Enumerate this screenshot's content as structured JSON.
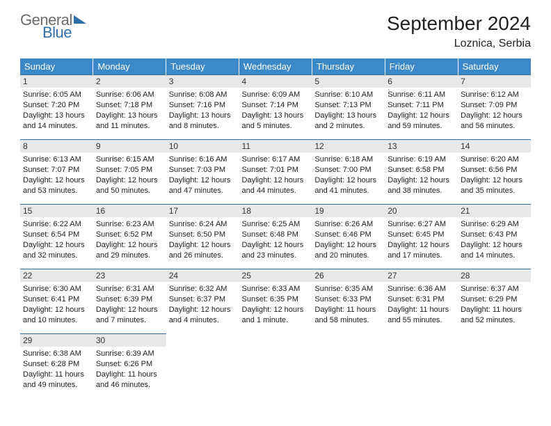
{
  "logo": {
    "word1": "General",
    "word2": "Blue"
  },
  "title": "September 2024",
  "location": "Loznica, Serbia",
  "weekdays": [
    "Sunday",
    "Monday",
    "Tuesday",
    "Wednesday",
    "Thursday",
    "Friday",
    "Saturday"
  ],
  "colors": {
    "header_bg": "#3b89c9",
    "header_text": "#ffffff",
    "daynum_bg": "#e8e8e8",
    "row_border": "#3b6a90",
    "logo_gray": "#6b6b6b",
    "logo_blue": "#2f6fa8"
  },
  "weeks": [
    [
      {
        "n": "1",
        "sr": "Sunrise: 6:05 AM",
        "ss": "Sunset: 7:20 PM",
        "d1": "Daylight: 13 hours",
        "d2": "and 14 minutes."
      },
      {
        "n": "2",
        "sr": "Sunrise: 6:06 AM",
        "ss": "Sunset: 7:18 PM",
        "d1": "Daylight: 13 hours",
        "d2": "and 11 minutes."
      },
      {
        "n": "3",
        "sr": "Sunrise: 6:08 AM",
        "ss": "Sunset: 7:16 PM",
        "d1": "Daylight: 13 hours",
        "d2": "and 8 minutes."
      },
      {
        "n": "4",
        "sr": "Sunrise: 6:09 AM",
        "ss": "Sunset: 7:14 PM",
        "d1": "Daylight: 13 hours",
        "d2": "and 5 minutes."
      },
      {
        "n": "5",
        "sr": "Sunrise: 6:10 AM",
        "ss": "Sunset: 7:13 PM",
        "d1": "Daylight: 13 hours",
        "d2": "and 2 minutes."
      },
      {
        "n": "6",
        "sr": "Sunrise: 6:11 AM",
        "ss": "Sunset: 7:11 PM",
        "d1": "Daylight: 12 hours",
        "d2": "and 59 minutes."
      },
      {
        "n": "7",
        "sr": "Sunrise: 6:12 AM",
        "ss": "Sunset: 7:09 PM",
        "d1": "Daylight: 12 hours",
        "d2": "and 56 minutes."
      }
    ],
    [
      {
        "n": "8",
        "sr": "Sunrise: 6:13 AM",
        "ss": "Sunset: 7:07 PM",
        "d1": "Daylight: 12 hours",
        "d2": "and 53 minutes."
      },
      {
        "n": "9",
        "sr": "Sunrise: 6:15 AM",
        "ss": "Sunset: 7:05 PM",
        "d1": "Daylight: 12 hours",
        "d2": "and 50 minutes."
      },
      {
        "n": "10",
        "sr": "Sunrise: 6:16 AM",
        "ss": "Sunset: 7:03 PM",
        "d1": "Daylight: 12 hours",
        "d2": "and 47 minutes."
      },
      {
        "n": "11",
        "sr": "Sunrise: 6:17 AM",
        "ss": "Sunset: 7:01 PM",
        "d1": "Daylight: 12 hours",
        "d2": "and 44 minutes."
      },
      {
        "n": "12",
        "sr": "Sunrise: 6:18 AM",
        "ss": "Sunset: 7:00 PM",
        "d1": "Daylight: 12 hours",
        "d2": "and 41 minutes."
      },
      {
        "n": "13",
        "sr": "Sunrise: 6:19 AM",
        "ss": "Sunset: 6:58 PM",
        "d1": "Daylight: 12 hours",
        "d2": "and 38 minutes."
      },
      {
        "n": "14",
        "sr": "Sunrise: 6:20 AM",
        "ss": "Sunset: 6:56 PM",
        "d1": "Daylight: 12 hours",
        "d2": "and 35 minutes."
      }
    ],
    [
      {
        "n": "15",
        "sr": "Sunrise: 6:22 AM",
        "ss": "Sunset: 6:54 PM",
        "d1": "Daylight: 12 hours",
        "d2": "and 32 minutes."
      },
      {
        "n": "16",
        "sr": "Sunrise: 6:23 AM",
        "ss": "Sunset: 6:52 PM",
        "d1": "Daylight: 12 hours",
        "d2": "and 29 minutes."
      },
      {
        "n": "17",
        "sr": "Sunrise: 6:24 AM",
        "ss": "Sunset: 6:50 PM",
        "d1": "Daylight: 12 hours",
        "d2": "and 26 minutes."
      },
      {
        "n": "18",
        "sr": "Sunrise: 6:25 AM",
        "ss": "Sunset: 6:48 PM",
        "d1": "Daylight: 12 hours",
        "d2": "and 23 minutes."
      },
      {
        "n": "19",
        "sr": "Sunrise: 6:26 AM",
        "ss": "Sunset: 6:46 PM",
        "d1": "Daylight: 12 hours",
        "d2": "and 20 minutes."
      },
      {
        "n": "20",
        "sr": "Sunrise: 6:27 AM",
        "ss": "Sunset: 6:45 PM",
        "d1": "Daylight: 12 hours",
        "d2": "and 17 minutes."
      },
      {
        "n": "21",
        "sr": "Sunrise: 6:29 AM",
        "ss": "Sunset: 6:43 PM",
        "d1": "Daylight: 12 hours",
        "d2": "and 14 minutes."
      }
    ],
    [
      {
        "n": "22",
        "sr": "Sunrise: 6:30 AM",
        "ss": "Sunset: 6:41 PM",
        "d1": "Daylight: 12 hours",
        "d2": "and 10 minutes."
      },
      {
        "n": "23",
        "sr": "Sunrise: 6:31 AM",
        "ss": "Sunset: 6:39 PM",
        "d1": "Daylight: 12 hours",
        "d2": "and 7 minutes."
      },
      {
        "n": "24",
        "sr": "Sunrise: 6:32 AM",
        "ss": "Sunset: 6:37 PM",
        "d1": "Daylight: 12 hours",
        "d2": "and 4 minutes."
      },
      {
        "n": "25",
        "sr": "Sunrise: 6:33 AM",
        "ss": "Sunset: 6:35 PM",
        "d1": "Daylight: 12 hours",
        "d2": "and 1 minute."
      },
      {
        "n": "26",
        "sr": "Sunrise: 6:35 AM",
        "ss": "Sunset: 6:33 PM",
        "d1": "Daylight: 11 hours",
        "d2": "and 58 minutes."
      },
      {
        "n": "27",
        "sr": "Sunrise: 6:36 AM",
        "ss": "Sunset: 6:31 PM",
        "d1": "Daylight: 11 hours",
        "d2": "and 55 minutes."
      },
      {
        "n": "28",
        "sr": "Sunrise: 6:37 AM",
        "ss": "Sunset: 6:29 PM",
        "d1": "Daylight: 11 hours",
        "d2": "and 52 minutes."
      }
    ],
    [
      {
        "n": "29",
        "sr": "Sunrise: 6:38 AM",
        "ss": "Sunset: 6:28 PM",
        "d1": "Daylight: 11 hours",
        "d2": "and 49 minutes."
      },
      {
        "n": "30",
        "sr": "Sunrise: 6:39 AM",
        "ss": "Sunset: 6:26 PM",
        "d1": "Daylight: 11 hours",
        "d2": "and 46 minutes."
      },
      null,
      null,
      null,
      null,
      null
    ]
  ]
}
